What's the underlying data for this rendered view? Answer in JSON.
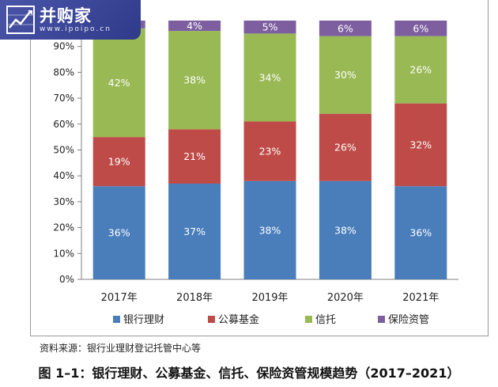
{
  "watermark": {
    "title": "并购家",
    "url": "www.ipoipo.cn"
  },
  "source_note": "资料来源：银行业理财登记托管中心等",
  "caption": "图 1–1：银行理财、公募基金、信托、保险资管规模趋势（2017–2021）",
  "chart_data": {
    "type": "bar",
    "stacked": true,
    "categories": [
      "2017年",
      "2018年",
      "2019年",
      "2020年",
      "2021年"
    ],
    "series": [
      {
        "name": "银行理财",
        "color": "#4a7ebb",
        "values": [
          36,
          37,
          38,
          38,
          36
        ]
      },
      {
        "name": "公募基金",
        "color": "#be4b48",
        "values": [
          19,
          21,
          23,
          26,
          32
        ]
      },
      {
        "name": "信托",
        "color": "#98b954",
        "values": [
          42,
          38,
          34,
          30,
          26
        ]
      },
      {
        "name": "保险资管",
        "color": "#7d5fa0",
        "values": [
          3,
          4,
          5,
          6,
          6
        ]
      }
    ],
    "visible_labels": [
      [
        "36%",
        "19%",
        "42%",
        ""
      ],
      [
        "37%",
        "21%",
        "38%",
        "4%"
      ],
      [
        "38%",
        "23%",
        "34%",
        "5%"
      ],
      [
        "38%",
        "26%",
        "30%",
        "6%"
      ],
      [
        "36%",
        "32%",
        "26%",
        "6%"
      ]
    ],
    "y_ticks": [
      "0%",
      "10%",
      "20%",
      "30%",
      "40%",
      "50%",
      "60%",
      "70%",
      "80%",
      "90%"
    ],
    "ylim": [
      0,
      100
    ],
    "grid": false,
    "legend_position": "bottom"
  }
}
